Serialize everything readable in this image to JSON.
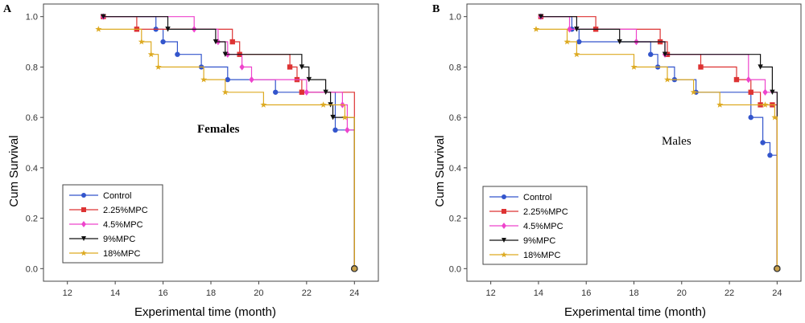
{
  "chart_data": [
    {
      "panel_label": "A",
      "type": "line",
      "subtype": "kaplan-meier step",
      "annotation": "Females",
      "xlabel": "Experimental time (month)",
      "ylabel": "Cum Survival",
      "xlim": [
        11,
        25
      ],
      "ylim": [
        -0.05,
        1.05
      ],
      "xticks": [
        "12",
        "14",
        "16",
        "18",
        "20",
        "22",
        "24"
      ],
      "yticks": [
        "0.0",
        "0.2",
        "0.4",
        "0.6",
        "0.8",
        "1.0"
      ],
      "legend_position": "bottom-left",
      "series": [
        {
          "name": "Control",
          "color": "#3355cc",
          "marker": "circle",
          "x": [
            13.5,
            15.7,
            16.0,
            16.6,
            17.6,
            18.7,
            20.7,
            23.2,
            24.0
          ],
          "y": [
            1.0,
            0.95,
            0.9,
            0.85,
            0.8,
            0.75,
            0.7,
            0.55,
            0.0
          ]
        },
        {
          "name": "2.25%MPC",
          "color": "#dd3333",
          "marker": "square",
          "x": [
            13.5,
            14.9,
            18.9,
            19.2,
            21.3,
            21.6,
            21.8,
            24.0
          ],
          "y": [
            1.0,
            0.95,
            0.9,
            0.85,
            0.8,
            0.75,
            0.7,
            0.0
          ]
        },
        {
          "name": "4.5%MPC",
          "color": "#ee44cc",
          "marker": "diamond",
          "x": [
            13.5,
            17.3,
            18.3,
            18.7,
            19.3,
            19.7,
            22.0,
            23.5,
            23.7,
            24.0
          ],
          "y": [
            1.0,
            0.95,
            0.9,
            0.85,
            0.8,
            0.75,
            0.7,
            0.65,
            0.55,
            0.0
          ]
        },
        {
          "name": "9%MPC",
          "color": "#111111",
          "marker": "triangle-down",
          "x": [
            13.5,
            16.2,
            18.2,
            18.6,
            21.8,
            22.1,
            22.8,
            23.0,
            23.1,
            24.0
          ],
          "y": [
            1.0,
            0.95,
            0.9,
            0.85,
            0.8,
            0.75,
            0.7,
            0.65,
            0.6,
            0.0
          ]
        },
        {
          "name": "18%MPC",
          "color": "#ddaa22",
          "marker": "star",
          "x": [
            13.3,
            15.1,
            15.5,
            15.8,
            17.7,
            18.6,
            20.2,
            22.7,
            23.6,
            24.0
          ],
          "y": [
            0.95,
            0.9,
            0.85,
            0.8,
            0.75,
            0.7,
            0.65,
            0.65,
            0.6,
            0.0
          ]
        }
      ]
    },
    {
      "panel_label": "B",
      "type": "line",
      "subtype": "kaplan-meier step",
      "annotation": "Males",
      "xlabel": "Experimental time (month)",
      "ylabel": "Cum Survival",
      "xlim": [
        11,
        25
      ],
      "ylim": [
        -0.05,
        1.05
      ],
      "xticks": [
        "12",
        "14",
        "16",
        "18",
        "20",
        "22",
        "24"
      ],
      "yticks": [
        "0.0",
        "0.2",
        "0.4",
        "0.6",
        "0.8",
        "1.0"
      ],
      "legend_position": "bottom-left",
      "series": [
        {
          "name": "Control",
          "color": "#3355cc",
          "marker": "circle",
          "x": [
            14.1,
            15.4,
            15.7,
            18.7,
            19.0,
            19.7,
            20.6,
            22.9,
            23.4,
            23.7,
            24.0
          ],
          "y": [
            1.0,
            0.95,
            0.9,
            0.85,
            0.8,
            0.75,
            0.7,
            0.6,
            0.5,
            0.45,
            0.0
          ]
        },
        {
          "name": "2.25%MPC",
          "color": "#dd3333",
          "marker": "square",
          "x": [
            14.1,
            16.4,
            19.1,
            19.4,
            20.8,
            22.3,
            22.9,
            23.3,
            23.8,
            24.0
          ],
          "y": [
            1.0,
            0.95,
            0.9,
            0.85,
            0.8,
            0.75,
            0.7,
            0.65,
            0.65,
            0.0
          ]
        },
        {
          "name": "4.5%MPC",
          "color": "#ee44cc",
          "marker": "diamond",
          "x": [
            14.1,
            15.3,
            18.1,
            19.3,
            22.8,
            23.5,
            24.0
          ],
          "y": [
            1.0,
            0.95,
            0.9,
            0.85,
            0.75,
            0.7,
            0.0
          ]
        },
        {
          "name": "9%MPC",
          "color": "#111111",
          "marker": "triangle-down",
          "x": [
            14.1,
            15.6,
            17.4,
            19.3,
            23.3,
            23.8,
            24.0
          ],
          "y": [
            1.0,
            0.95,
            0.9,
            0.85,
            0.8,
            0.7,
            0.0
          ]
        },
        {
          "name": "18%MPC",
          "color": "#ddaa22",
          "marker": "star",
          "x": [
            13.9,
            15.2,
            15.6,
            18.0,
            19.4,
            20.5,
            21.6,
            23.5,
            23.9,
            24.0
          ],
          "y": [
            0.95,
            0.9,
            0.85,
            0.8,
            0.75,
            0.7,
            0.65,
            0.65,
            0.6,
            0.0
          ]
        }
      ]
    }
  ]
}
